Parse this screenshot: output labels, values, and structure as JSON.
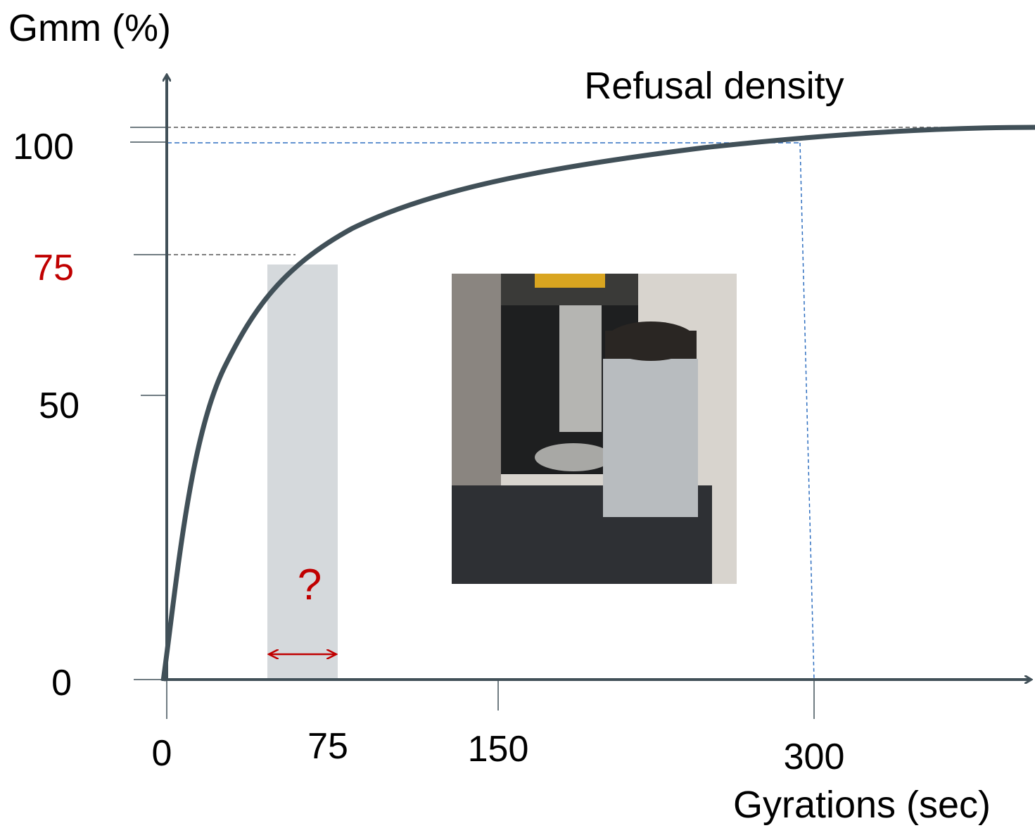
{
  "axes": {
    "y_title": "Gmm (%)",
    "x_title": "Gyrations (sec)",
    "y_ticks": [
      "100",
      "75",
      "50",
      "0"
    ],
    "x_ticks": [
      "0",
      "75",
      "150",
      "300"
    ]
  },
  "annotations": {
    "refusal": "Refusal density",
    "question": "?"
  }
}
